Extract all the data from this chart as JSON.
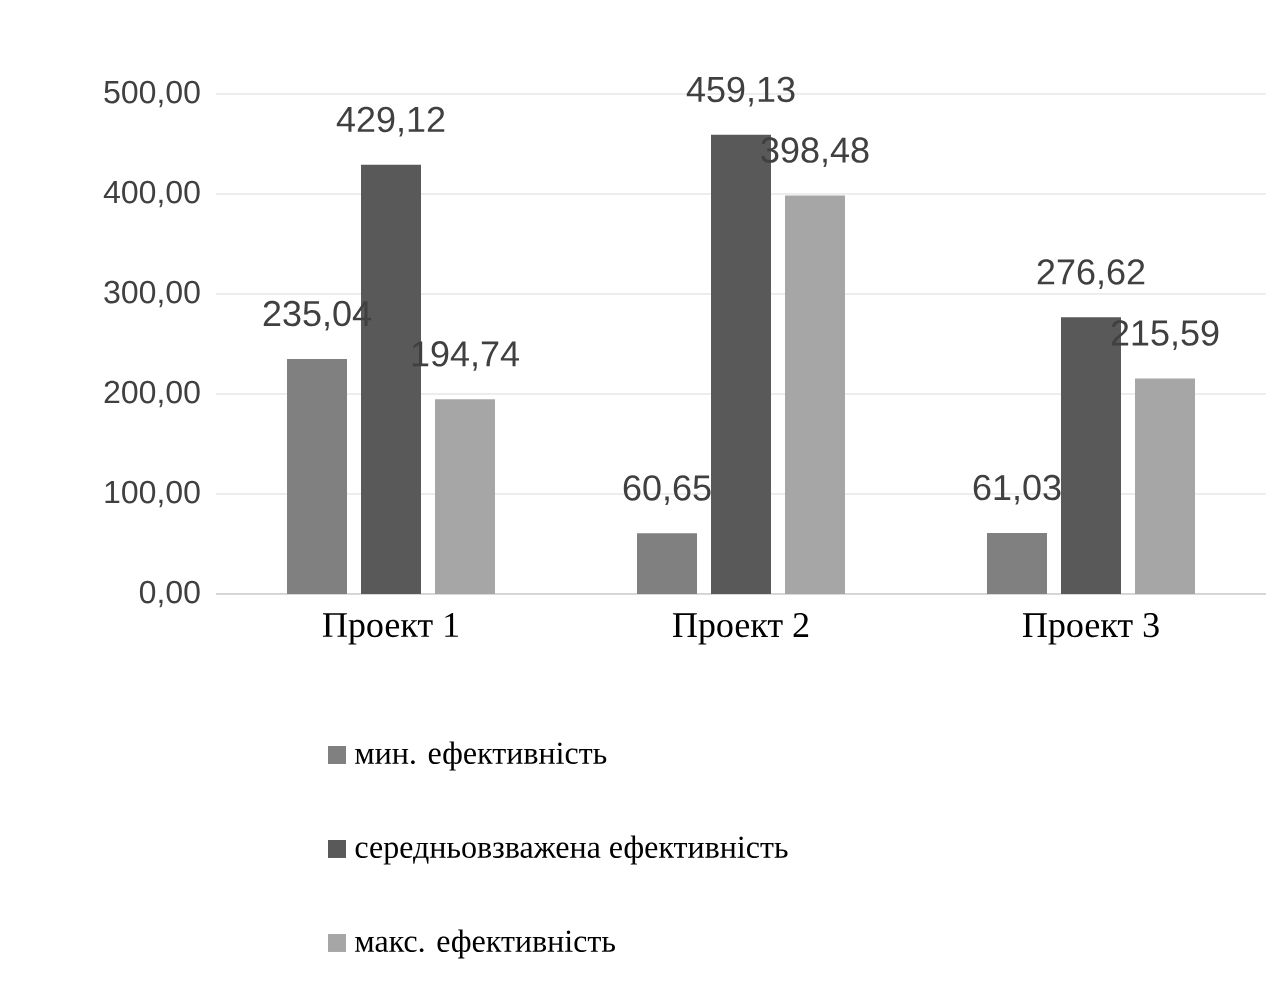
{
  "chart_data": {
    "type": "bar",
    "categories": [
      "Проект 1",
      "Проект 2",
      "Проект 3"
    ],
    "series": [
      {
        "name": "мин. ефективність",
        "color": "#808080",
        "values": [
          235.04,
          60.65,
          61.03
        ],
        "value_labels": [
          "235,04",
          "60,65",
          "61,03"
        ]
      },
      {
        "name": "середньовзважена ефективність",
        "color": "#595959",
        "values": [
          429.12,
          459.13,
          276.62
        ],
        "value_labels": [
          "429,12",
          "459,13",
          "276,62"
        ]
      },
      {
        "name": "макс. ефективність",
        "color": "#a6a6a6",
        "values": [
          194.74,
          398.48,
          215.59
        ],
        "value_labels": [
          "194,74",
          "398,48",
          "215,59"
        ]
      }
    ],
    "ylim": [
      0,
      500
    ],
    "yticks": [
      {
        "value": 0,
        "label": "0,00"
      },
      {
        "value": 100,
        "label": "100,00"
      },
      {
        "value": 200,
        "label": "200,00"
      },
      {
        "value": 300,
        "label": "300,00"
      },
      {
        "value": 400,
        "label": "400,00"
      },
      {
        "value": 500,
        "label": "500,00"
      }
    ],
    "grid": "y",
    "legend": "bottom"
  }
}
